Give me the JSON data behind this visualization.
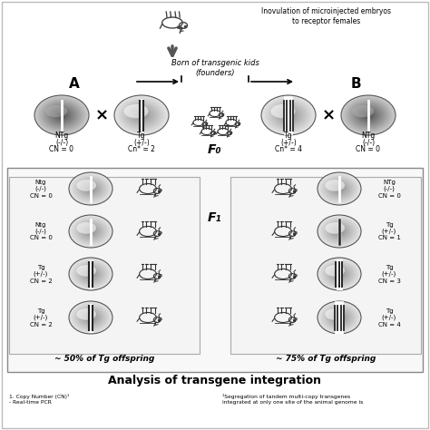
{
  "title": "Analysis of transgene integration",
  "bg_color": "#f0f0f0",
  "top_text": "Inovulation of microinjected embryos\nto receptor females",
  "born_text": "Born of transgenic kids\n(founders)",
  "F0_label": "F₀",
  "F1_label": "F₁",
  "section_A_label": "A",
  "section_B_label": "B",
  "A_left_label": [
    "NTg",
    "(-/-)",
    "CN = 0"
  ],
  "A_right_label": [
    "Tg",
    "(+/-)",
    "Cn* = 2"
  ],
  "B_left_label": [
    "Tg",
    "(+/-)",
    "Cn* = 4"
  ],
  "B_right_label": [
    "NTg",
    "(-/-)",
    "CN = 0"
  ],
  "A_offspring": [
    {
      "label": [
        "Ntg",
        "(-/-)",
        "CN = 0"
      ],
      "cn": 0,
      "dark": false
    },
    {
      "label": [
        "Ntg",
        "(-/-)",
        "CN = 0"
      ],
      "cn": 0,
      "dark": false
    },
    {
      "label": [
        "Tg",
        "(+/-)",
        "CN = 2"
      ],
      "cn": 2,
      "dark": false
    },
    {
      "label": [
        "Tg",
        "(+/-)",
        "CN = 2"
      ],
      "cn": 2,
      "dark": false
    }
  ],
  "B_offspring": [
    {
      "label": [
        "NTg",
        "(-/-)",
        "CN = 0"
      ],
      "cn": 0,
      "dark": false
    },
    {
      "label": [
        "Tg",
        "(+/-)",
        "CN = 1"
      ],
      "cn": 1,
      "dark": false
    },
    {
      "label": [
        "Tg",
        "(+/-)",
        "CN = 3"
      ],
      "cn": 3,
      "dark": false
    },
    {
      "label": [
        "Tg",
        "(+/-)",
        "CN = 4"
      ],
      "cn": 4,
      "dark": false
    }
  ],
  "A_percent": "~ 50% of Tg offspring",
  "B_percent": "~ 75% of Tg offspring",
  "footnote1": "1. Copy Number (CN)¹\n- Real-time PCR",
  "footnote2": "¹Segregation of tandem multi-copy transgenes\nintegrated at only one site of the animal genome is"
}
